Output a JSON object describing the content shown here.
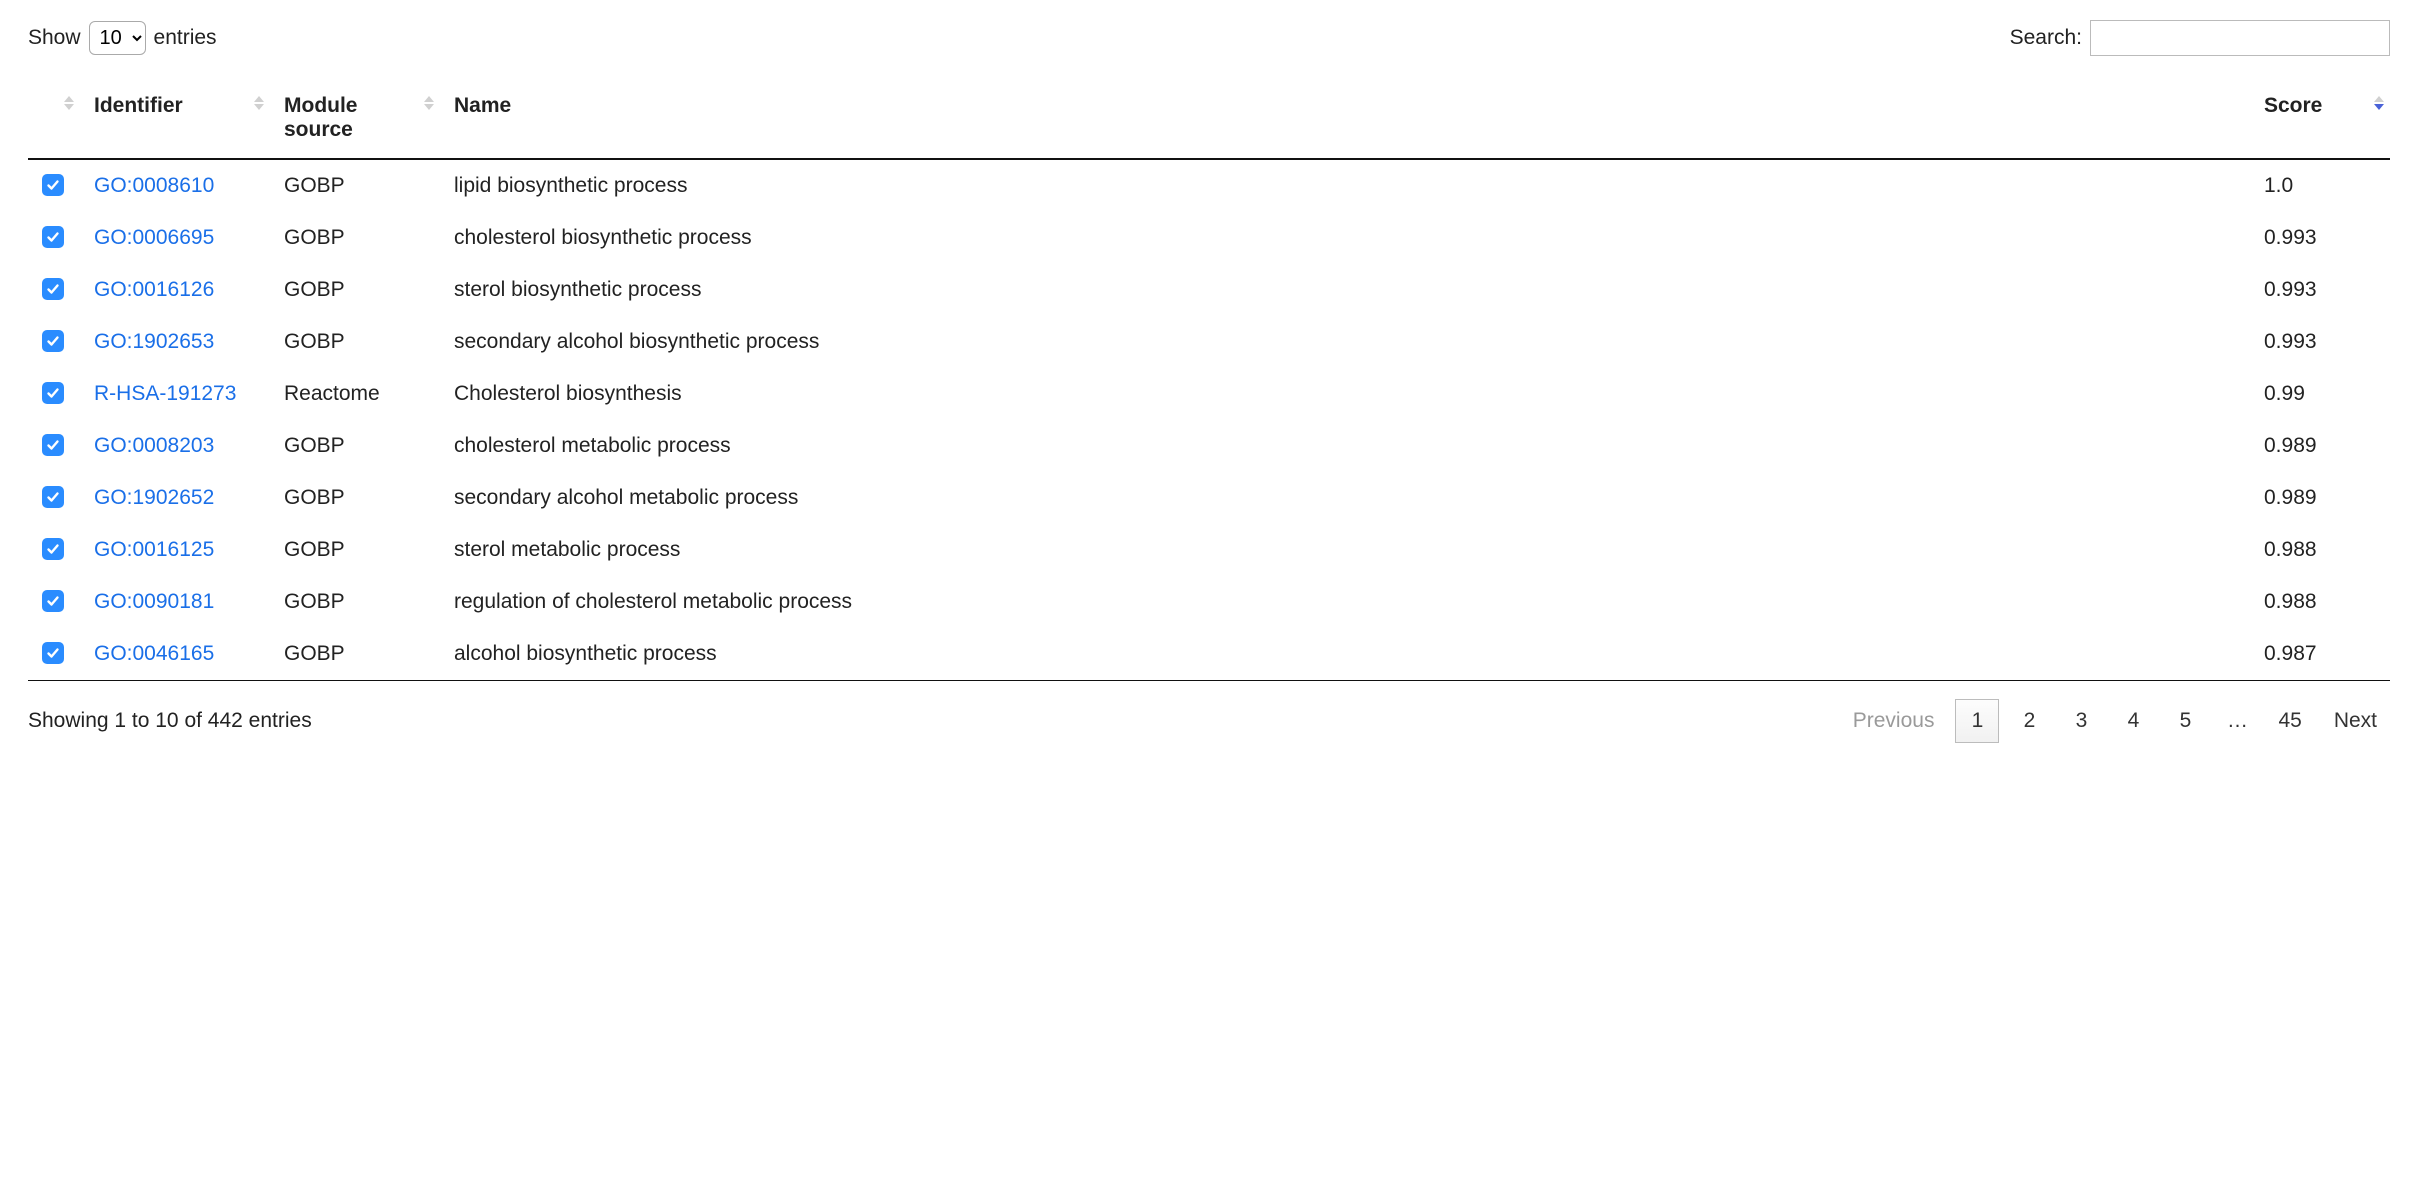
{
  "colors": {
    "link": "#1a6fe8",
    "checkbox_bg": "#2a8cff",
    "header_border": "#111111",
    "sort_arrow_muted": "#d0d0d0",
    "sort_arrow_active": "#4a62d8"
  },
  "lengthMenu": {
    "prefix": "Show",
    "suffix": "entries",
    "selected": "10"
  },
  "search": {
    "label": "Search:",
    "value": ""
  },
  "columns": [
    {
      "label": ""
    },
    {
      "label": "Identifier"
    },
    {
      "label": "Module source"
    },
    {
      "label": "Name"
    },
    {
      "label": "Score"
    }
  ],
  "sorted_column_index": 4,
  "sorted_dir": "desc",
  "rows": [
    {
      "checked": true,
      "identifier": "GO:0008610",
      "module_source": "GOBP",
      "name": "lipid biosynthetic process",
      "score": "1.0"
    },
    {
      "checked": true,
      "identifier": "GO:0006695",
      "module_source": "GOBP",
      "name": "cholesterol biosynthetic process",
      "score": "0.993"
    },
    {
      "checked": true,
      "identifier": "GO:0016126",
      "module_source": "GOBP",
      "name": "sterol biosynthetic process",
      "score": "0.993"
    },
    {
      "checked": true,
      "identifier": "GO:1902653",
      "module_source": "GOBP",
      "name": "secondary alcohol biosynthetic process",
      "score": "0.993"
    },
    {
      "checked": true,
      "identifier": "R-HSA-191273",
      "module_source": "Reactome",
      "name": "Cholesterol biosynthesis",
      "score": "0.99"
    },
    {
      "checked": true,
      "identifier": "GO:0008203",
      "module_source": "GOBP",
      "name": "cholesterol metabolic process",
      "score": "0.989"
    },
    {
      "checked": true,
      "identifier": "GO:1902652",
      "module_source": "GOBP",
      "name": "secondary alcohol metabolic process",
      "score": "0.989"
    },
    {
      "checked": true,
      "identifier": "GO:0016125",
      "module_source": "GOBP",
      "name": "sterol metabolic process",
      "score": "0.988"
    },
    {
      "checked": true,
      "identifier": "GO:0090181",
      "module_source": "GOBP",
      "name": "regulation of cholesterol metabolic process",
      "score": "0.988"
    },
    {
      "checked": true,
      "identifier": "GO:0046165",
      "module_source": "GOBP",
      "name": "alcohol biosynthetic process",
      "score": "0.987"
    }
  ],
  "info": "Showing 1 to 10 of 442 entries",
  "pagination": {
    "previous": "Previous",
    "next": "Next",
    "pages": [
      "1",
      "2",
      "3",
      "4",
      "5",
      "...",
      "45"
    ],
    "current": "1",
    "previous_disabled": true,
    "next_disabled": false
  }
}
